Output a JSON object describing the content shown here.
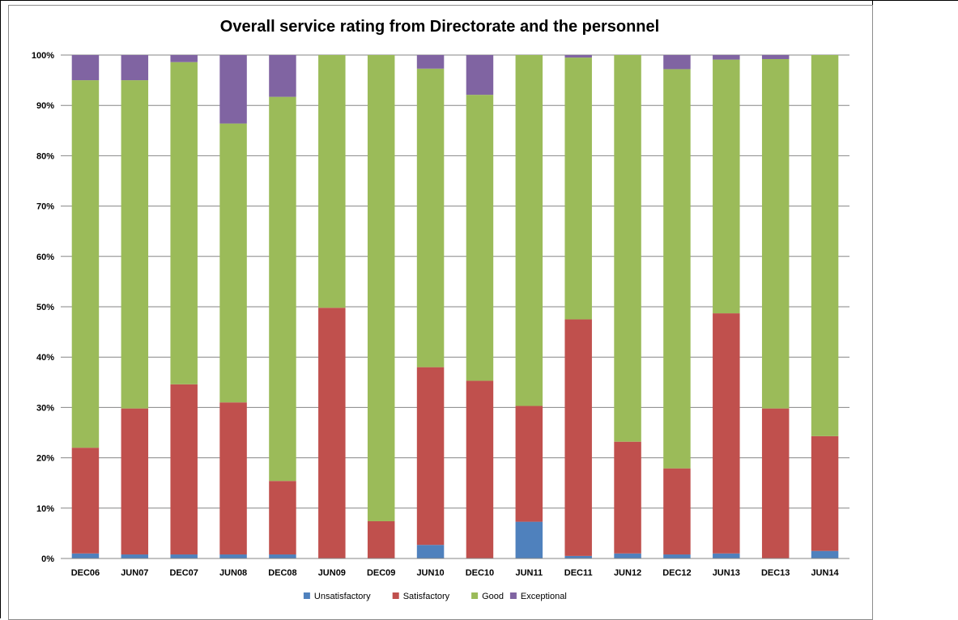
{
  "chart_data": {
    "type": "bar",
    "stacked": true,
    "normalized": true,
    "title": "Overall service rating from Directorate and the personnel",
    "categories": [
      "DEC06",
      "JUN07",
      "DEC07",
      "JUN08",
      "DEC08",
      "JUN09",
      "DEC09",
      "JUN10",
      "DEC10",
      "JUN11",
      "DEC11",
      "JUN12",
      "DEC12",
      "JUN13",
      "DEC13",
      "JUN14"
    ],
    "series": [
      {
        "name": "Unsatisfactory",
        "color": "#4f81bd",
        "values": [
          1,
          0.8,
          0.8,
          0.8,
          0.8,
          0,
          0,
          2.7,
          0,
          7.3,
          0.5,
          1,
          0.8,
          1,
          0,
          1.5
        ]
      },
      {
        "name": "Satisfactory",
        "color": "#c0504d",
        "values": [
          21,
          29,
          33.8,
          30.2,
          14.6,
          49.8,
          7.4,
          35.3,
          35.3,
          23,
          47,
          22.2,
          17.1,
          47.7,
          29.8,
          22.8
        ]
      },
      {
        "name": "Good",
        "color": "#9bbb59",
        "values": [
          73,
          65.2,
          64,
          55.4,
          76.3,
          50.2,
          92.6,
          59.3,
          56.8,
          69.7,
          52,
          76.8,
          79.3,
          50.4,
          69.4,
          75.7
        ]
      },
      {
        "name": "Exceptional",
        "color": "#8064a2",
        "values": [
          5,
          5,
          1.4,
          13.6,
          8.3,
          0,
          0,
          2.7,
          7.9,
          0,
          0.5,
          0,
          2.8,
          0.9,
          0.8,
          0
        ]
      }
    ],
    "ylim": [
      0,
      100
    ],
    "yticks": [
      "0%",
      "10%",
      "20%",
      "30%",
      "40%",
      "50%",
      "60%",
      "70%",
      "80%",
      "90%",
      "100%"
    ],
    "grid": true,
    "legend_position": "bottom"
  }
}
